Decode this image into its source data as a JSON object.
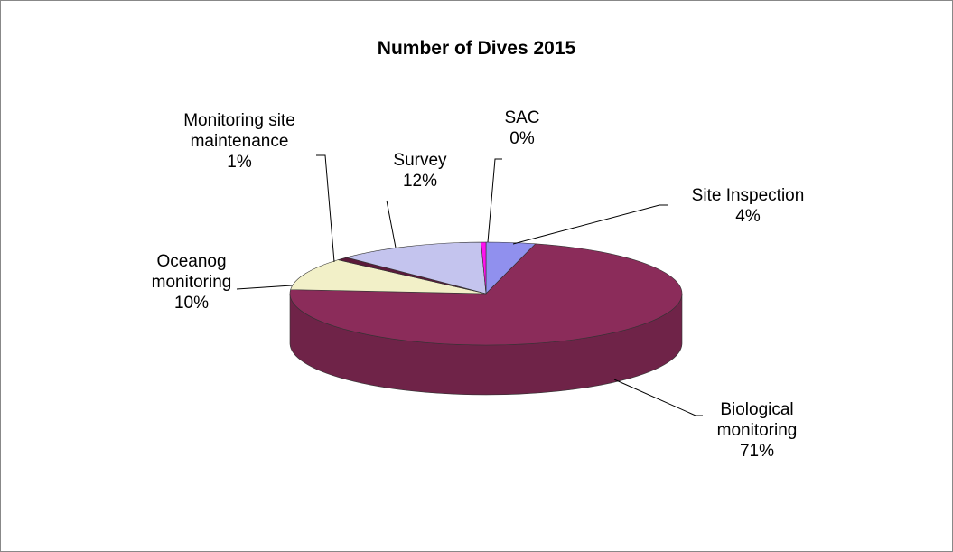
{
  "chart_data": {
    "type": "pie",
    "title": "Number of Dives 2015",
    "categories": [
      "Site Inspection",
      "Biological monitoring",
      "Oceanog monitoring",
      "Monitoring site maintenance",
      "Survey",
      "SAC"
    ],
    "values": [
      4,
      71,
      10,
      1,
      12,
      0.4
    ],
    "value_labels": [
      "4%",
      "71%",
      "10%",
      "1%",
      "12%",
      "0%"
    ],
    "colors": [
      "#9090ee",
      "#8b2c5a",
      "#f2f0c8",
      "#5b1a3a",
      "#c4c4ee",
      "#ff10f0"
    ]
  }
}
